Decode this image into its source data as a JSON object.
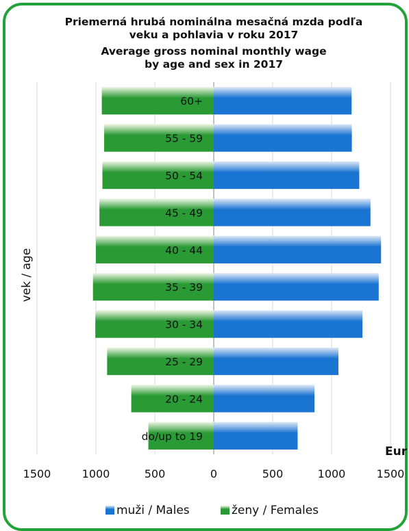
{
  "chart_data": {
    "type": "bar",
    "orientation": "horizontal",
    "title_lines": [
      "Priemerná hrubá nominálna mesačná mzda podľa",
      "veku a pohlavia v roku 2017",
      "Average gross nominal monthly wage",
      "by age and sex in 2017"
    ],
    "ylabel": "vek / age",
    "unit_label": "Eur",
    "categories": [
      "60+",
      "55 - 59",
      "50 - 54",
      "45 - 49",
      "40 - 44",
      "35 - 39",
      "30 - 34",
      "25 - 29",
      "20 - 24",
      "do/up to 19"
    ],
    "series": [
      {
        "name": "muži / Males",
        "values": [
          1170,
          1172,
          1235,
          1330,
          1420,
          1400,
          1262,
          1058,
          855,
          712
        ]
      },
      {
        "name": "ženy / Females",
        "values": [
          950,
          930,
          945,
          970,
          1000,
          1025,
          1005,
          905,
          700,
          555
        ]
      }
    ],
    "xlim": [
      -1500,
      1500
    ],
    "x_ticks": [
      -1500,
      -1000,
      -500,
      0,
      500,
      1000,
      1500
    ],
    "x_tick_labels": [
      "1500",
      "1000",
      "500",
      "0",
      "500",
      "1000",
      "1500"
    ],
    "grid": "vertical",
    "legend_position": "bottom"
  },
  "colors": {
    "frame": "#22a33a",
    "males": "#1a74d2",
    "males_light": "#dfe8f6",
    "females": "#2a9a35",
    "females_light": "#eef6e4",
    "grid": "#d8d8d8"
  }
}
